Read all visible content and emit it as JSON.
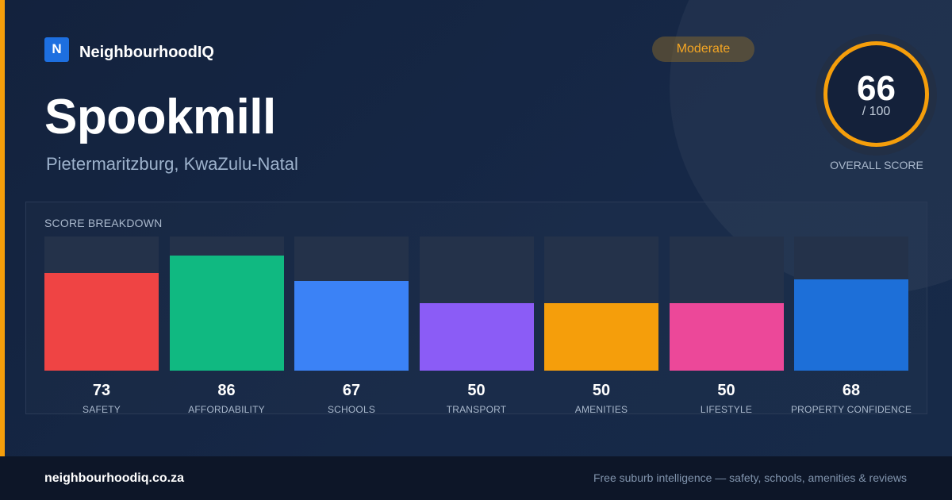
{
  "brand": {
    "logo_letter": "N",
    "name": "NeighbourhoodIQ"
  },
  "suburb": {
    "name": "Spookmill",
    "location": "Pietermaritzburg, KwaZulu-Natal"
  },
  "badge": {
    "label": "Moderate",
    "color": "#f5a623"
  },
  "overall": {
    "value": "66",
    "max_label": "/ 100",
    "label": "OVERALL SCORE",
    "ring_color": "#f59e0b"
  },
  "breakdown": {
    "title": "SCORE BREAKDOWN",
    "items": [
      {
        "label": "SAFETY",
        "value": 73,
        "color": "#ef4444"
      },
      {
        "label": "AFFORDABILITY",
        "value": 86,
        "color": "#10b981"
      },
      {
        "label": "SCHOOLS",
        "value": 67,
        "color": "#3b82f6"
      },
      {
        "label": "TRANSPORT",
        "value": 50,
        "color": "#8b5cf6"
      },
      {
        "label": "AMENITIES",
        "value": 50,
        "color": "#f59e0b"
      },
      {
        "label": "LIFESTYLE",
        "value": 50,
        "color": "#ec4899"
      },
      {
        "label": "PROPERTY CONFIDENCE",
        "value": 68,
        "color": "#1d6fd8"
      }
    ]
  },
  "footer": {
    "domain": "neighbourhoodiq.co.za",
    "tagline": "Free suburb intelligence — safety, schools, amenities & reviews"
  }
}
